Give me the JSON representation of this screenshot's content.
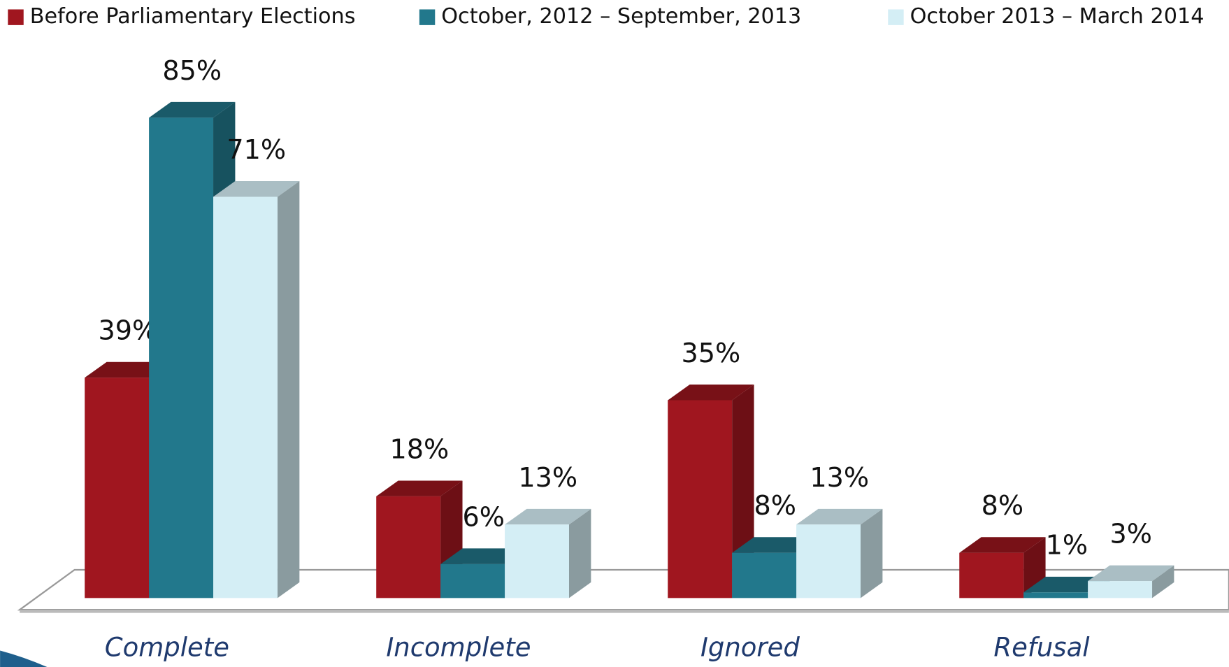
{
  "chart_data": {
    "type": "bar3d",
    "categories": [
      "Complete",
      "Incomplete",
      "Ignored",
      "Refusal"
    ],
    "series": [
      {
        "name": "Before Parliamentary Elections",
        "color": "#a0161f",
        "values": [
          39,
          18,
          35,
          8
        ],
        "value_labels": [
          "39%",
          "18%",
          "35%",
          "8%"
        ]
      },
      {
        "name": "October, 2012  – September, 2013",
        "color": "#22788c",
        "values": [
          85,
          6,
          8,
          1
        ],
        "value_labels": [
          "85%",
          "6%",
          "8%",
          "1%"
        ]
      },
      {
        "name": "October 2013 – March 2014",
        "color": "#d4eef5",
        "values": [
          71,
          13,
          13,
          3
        ],
        "value_labels": [
          "71%",
          "13%",
          "13%",
          "3%"
        ]
      }
    ],
    "legend": "top"
  }
}
